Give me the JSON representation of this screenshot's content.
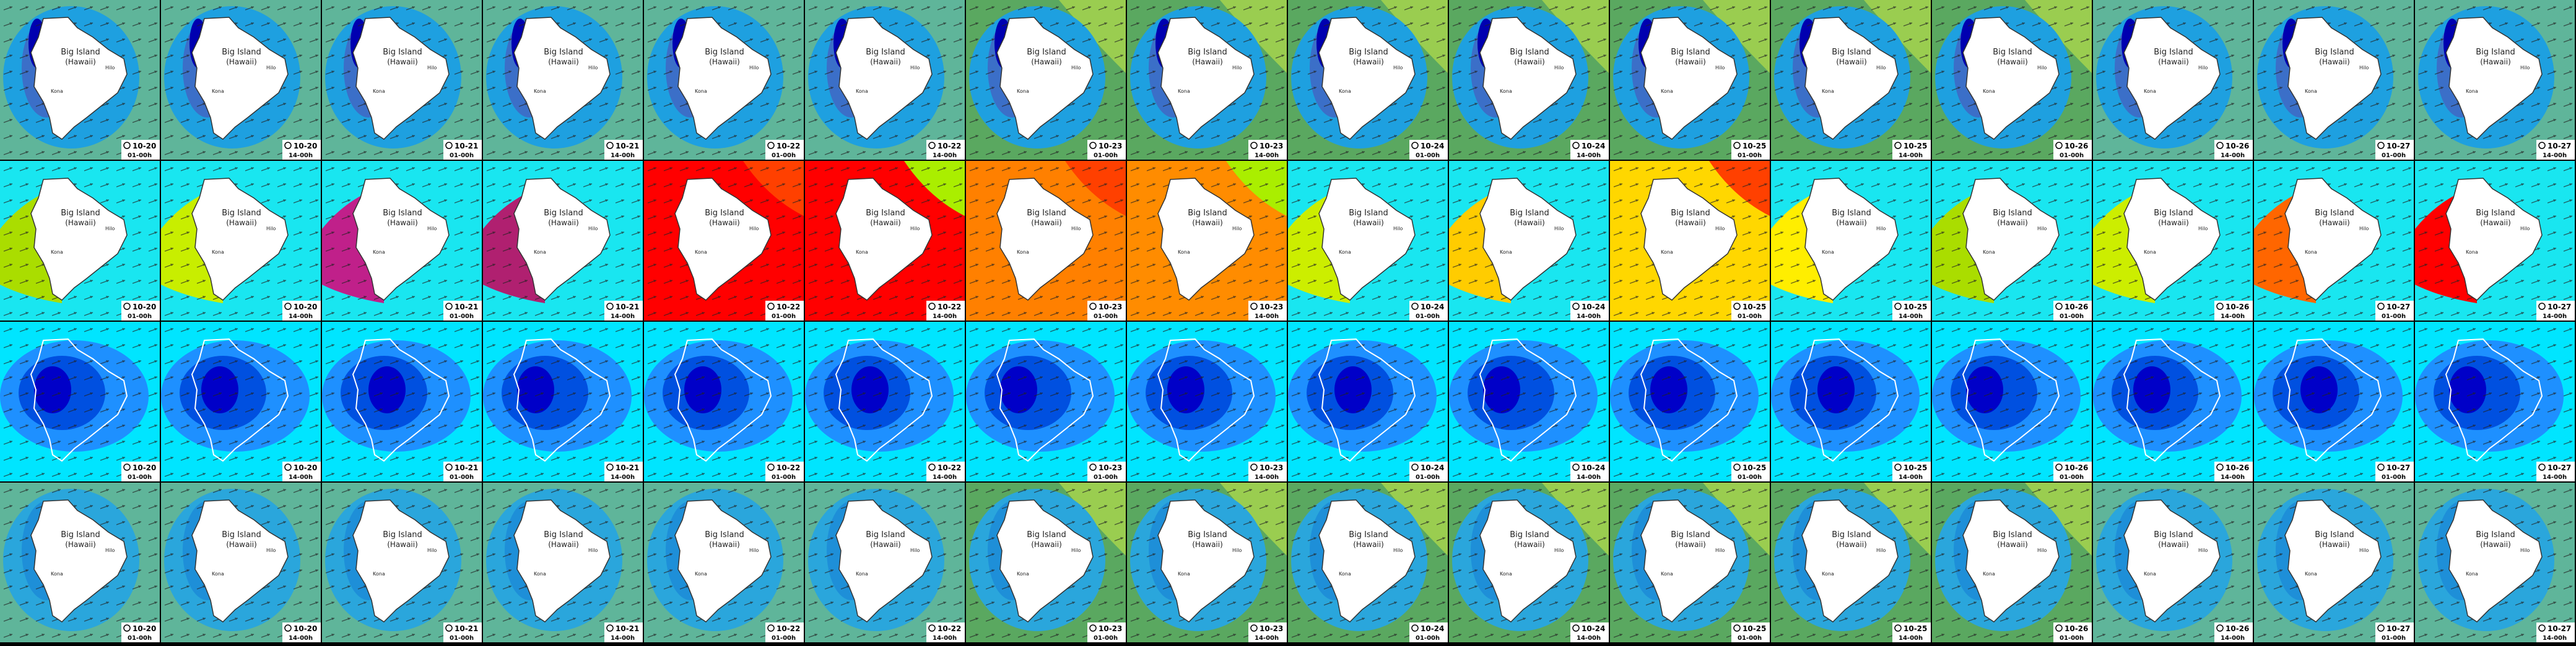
{
  "map_labels": {
    "name": "Big Island",
    "sub": "(Hawaii)",
    "west": "Kona",
    "east": "Hilo"
  },
  "timestamps": [
    {
      "date": "10-20",
      "time": "01-00h"
    },
    {
      "date": "10-20",
      "time": "14-00h"
    },
    {
      "date": "10-21",
      "time": "01-00h"
    },
    {
      "date": "10-21",
      "time": "14-00h"
    },
    {
      "date": "10-22",
      "time": "01-00h"
    },
    {
      "date": "10-22",
      "time": "14-00h"
    },
    {
      "date": "10-23",
      "time": "01-00h"
    },
    {
      "date": "10-23",
      "time": "14-00h"
    },
    {
      "date": "10-24",
      "time": "01-00h"
    },
    {
      "date": "10-24",
      "time": "14-00h"
    },
    {
      "date": "10-25",
      "time": "01-00h"
    },
    {
      "date": "10-25",
      "time": "14-00h"
    },
    {
      "date": "10-26",
      "time": "01-00h"
    },
    {
      "date": "10-26",
      "time": "14-00h"
    },
    {
      "date": "10-27",
      "time": "01-00h"
    },
    {
      "date": "10-27",
      "time": "14-00h"
    }
  ]
}
